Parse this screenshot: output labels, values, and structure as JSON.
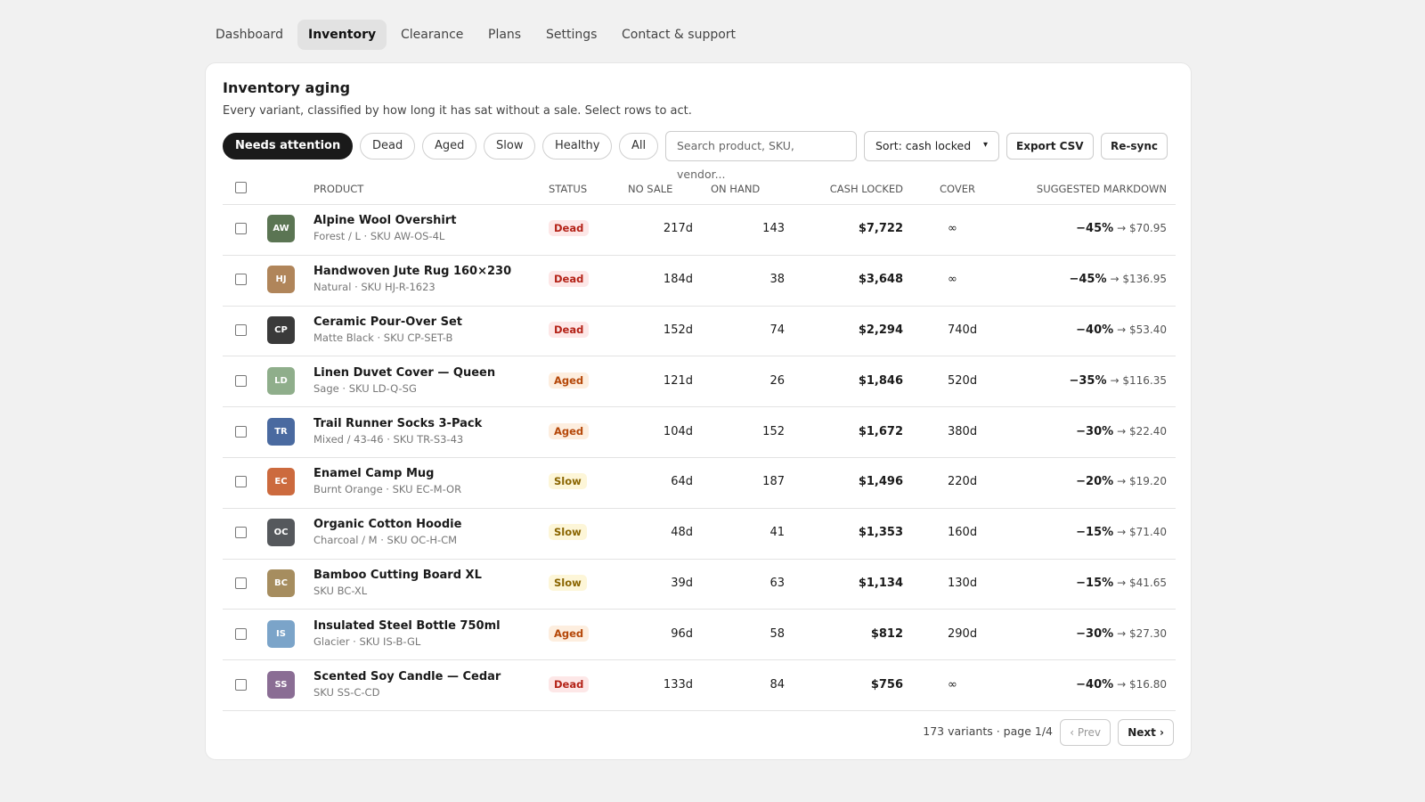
{
  "nav": {
    "tabs": [
      "Dashboard",
      "Inventory",
      "Clearance",
      "Plans",
      "Settings",
      "Contact & support"
    ],
    "active_tab": 1
  },
  "panel": {
    "title": "Inventory aging",
    "subtitle": "Every variant, classified by how long it has sat without a sale. Select rows to act."
  },
  "toolbar": {
    "filters": [
      "Needs attention",
      "Dead",
      "Aged",
      "Slow",
      "Healthy",
      "All"
    ],
    "active_filter": 0,
    "search_placeholder": "Search product, SKU, vendor...",
    "sort": "Sort: cash locked",
    "buttons": [
      "Export CSV",
      "Re-sync"
    ]
  },
  "table": {
    "columns": [
      "PRODUCT",
      "STATUS",
      "NO SALE",
      "ON HAND",
      "CASH LOCKED",
      "COVER",
      "SUGGESTED MARKDOWN"
    ],
    "rows": [
      {
        "initials": "AW",
        "color": "#5b7553",
        "name": "Alpine Wool Overshirt",
        "meta": "Forest / L · SKU AW-OS-4L",
        "status": "Dead",
        "no_sale": "217d",
        "on_hand": 143,
        "cash_locked": "$7,722",
        "cover": "∞",
        "markdown": "−45%",
        "target": "→ $70.95"
      },
      {
        "initials": "HJ",
        "color": "#b0855a",
        "name": "Handwoven Jute Rug 160×230",
        "meta": "Natural · SKU HJ-R-1623",
        "status": "Dead",
        "no_sale": "184d",
        "on_hand": 38,
        "cash_locked": "$3,648",
        "cover": "∞",
        "markdown": "−45%",
        "target": "→ $136.95"
      },
      {
        "initials": "CP",
        "color": "#3a3a3a",
        "name": "Ceramic Pour-Over Set",
        "meta": "Matte Black · SKU CP-SET-B",
        "status": "Dead",
        "no_sale": "152d",
        "on_hand": 74,
        "cash_locked": "$2,294",
        "cover": "740d",
        "markdown": "−40%",
        "target": "→ $53.40"
      },
      {
        "initials": "LD",
        "color": "#8fae8b",
        "name": "Linen Duvet Cover — Queen",
        "meta": "Sage · SKU LD-Q-SG",
        "status": "Aged",
        "no_sale": "121d",
        "on_hand": 26,
        "cash_locked": "$1,846",
        "cover": "520d",
        "markdown": "−35%",
        "target": "→ $116.35"
      },
      {
        "initials": "TR",
        "color": "#4a6aa0",
        "name": "Trail Runner Socks 3-Pack",
        "meta": "Mixed / 43-46 · SKU TR-S3-43",
        "status": "Aged",
        "no_sale": "104d",
        "on_hand": 152,
        "cash_locked": "$1,672",
        "cover": "380d",
        "markdown": "−30%",
        "target": "→ $22.40"
      },
      {
        "initials": "EC",
        "color": "#cc6a3e",
        "name": "Enamel Camp Mug",
        "meta": "Burnt Orange · SKU EC-M-OR",
        "status": "Slow",
        "no_sale": "64d",
        "on_hand": 187,
        "cash_locked": "$1,496",
        "cover": "220d",
        "markdown": "−20%",
        "target": "→ $19.20"
      },
      {
        "initials": "OC",
        "color": "#55585c",
        "name": "Organic Cotton Hoodie",
        "meta": "Charcoal / M · SKU OC-H-CM",
        "status": "Slow",
        "no_sale": "48d",
        "on_hand": 41,
        "cash_locked": "$1,353",
        "cover": "160d",
        "markdown": "−15%",
        "target": "→ $71.40"
      },
      {
        "initials": "BC",
        "color": "#a68d5f",
        "name": "Bamboo Cutting Board XL",
        "meta": "SKU BC-XL",
        "status": "Slow",
        "no_sale": "39d",
        "on_hand": 63,
        "cash_locked": "$1,134",
        "cover": "130d",
        "markdown": "−15%",
        "target": "→ $41.65"
      },
      {
        "initials": "IS",
        "color": "#7ba4c9",
        "name": "Insulated Steel Bottle 750ml",
        "meta": "Glacier · SKU IS-B-GL",
        "status": "Aged",
        "no_sale": "96d",
        "on_hand": 58,
        "cash_locked": "$812",
        "cover": "290d",
        "markdown": "−30%",
        "target": "→ $27.30"
      },
      {
        "initials": "SS",
        "color": "#8a6d94",
        "name": "Scented Soy Candle — Cedar",
        "meta": "SKU SS-C-CD",
        "status": "Dead",
        "no_sale": "133d",
        "on_hand": 84,
        "cash_locked": "$756",
        "cover": "∞",
        "markdown": "−40%",
        "target": "→ $16.80"
      }
    ]
  },
  "footer": {
    "summary": "173 variants · page 1/4",
    "prev": "‹ Prev",
    "next": "Next ›"
  }
}
